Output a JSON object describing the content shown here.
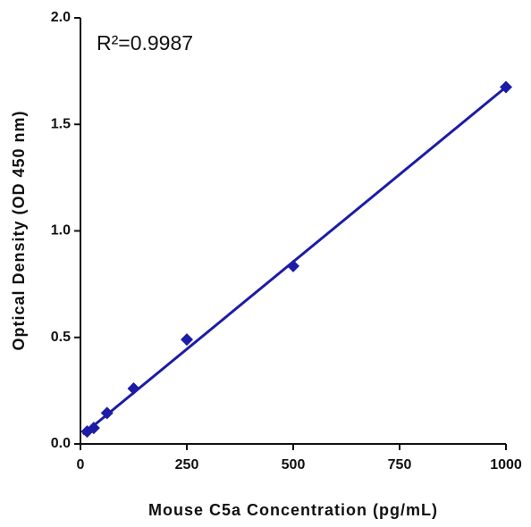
{
  "chart_data": {
    "type": "scatter",
    "xlabel": "Mouse C5a Concentration (pg/mL)",
    "ylabel": "Optical Density (OD 450 nm)",
    "annotation": "R²=0.9987",
    "color": "#1c1ca6",
    "series": [
      {
        "x": [
          15.6,
          31.25,
          62.5,
          125,
          250,
          500,
          1000
        ],
        "values": [
          0.058,
          0.075,
          0.145,
          0.26,
          0.49,
          0.835,
          1.675
        ]
      }
    ],
    "fit": {
      "x": [
        6,
        1000
      ],
      "values": [
        0.045,
        1.675
      ]
    },
    "xlim": [
      0,
      1000
    ],
    "xticks": [
      0,
      250,
      500,
      750,
      1000
    ],
    "ylim": [
      0,
      2
    ],
    "yticks": [
      {
        "value": 0,
        "label": "0.0"
      },
      {
        "value": 0.5,
        "label": "0.5"
      },
      {
        "value": 1,
        "label": "1.0"
      },
      {
        "value": 1.5,
        "label": "1.5"
      },
      {
        "value": 2,
        "label": "2.0"
      }
    ]
  }
}
